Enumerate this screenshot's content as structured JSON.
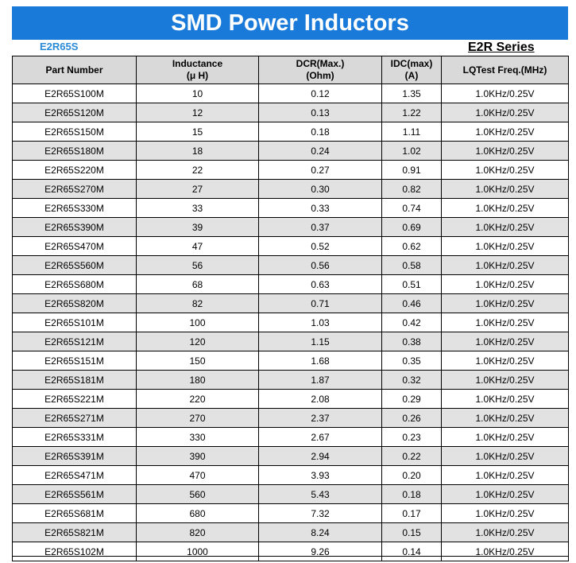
{
  "title": "SMD Power Inductors",
  "model": "E2R65S",
  "series": "E2R Series",
  "colors": {
    "banner": "#1a7ad9",
    "model_text": "#2a8ad6",
    "header_bg": "#d9d9d9",
    "alt_row_bg": "#e2e2e2"
  },
  "columns": [
    {
      "line1": "Part Number",
      "line2": ""
    },
    {
      "line1": "Inductance",
      "line2": "(μ H)"
    },
    {
      "line1": "DCR(Max.)",
      "line2": "(Ohm)"
    },
    {
      "line1": "IDC(max)",
      "line2": "(A)"
    },
    {
      "line1": "LQTest Freq.(MHz)",
      "line2": ""
    }
  ],
  "rows": [
    [
      "E2R65S100M",
      "10",
      "0.12",
      "1.35",
      "1.0KHz/0.25V"
    ],
    [
      "E2R65S120M",
      "12",
      "0.13",
      "1.22",
      "1.0KHz/0.25V"
    ],
    [
      "E2R65S150M",
      "15",
      "0.18",
      "1.11",
      "1.0KHz/0.25V"
    ],
    [
      "E2R65S180M",
      "18",
      "0.24",
      "1.02",
      "1.0KHz/0.25V"
    ],
    [
      "E2R65S220M",
      "22",
      "0.27",
      "0.91",
      "1.0KHz/0.25V"
    ],
    [
      "E2R65S270M",
      "27",
      "0.30",
      "0.82",
      "1.0KHz/0.25V"
    ],
    [
      "E2R65S330M",
      "33",
      "0.33",
      "0.74",
      "1.0KHz/0.25V"
    ],
    [
      "E2R65S390M",
      "39",
      "0.37",
      "0.69",
      "1.0KHz/0.25V"
    ],
    [
      "E2R65S470M",
      "47",
      "0.52",
      "0.62",
      "1.0KHz/0.25V"
    ],
    [
      "E2R65S560M",
      "56",
      "0.56",
      "0.58",
      "1.0KHz/0.25V"
    ],
    [
      "E2R65S680M",
      "68",
      "0.63",
      "0.51",
      "1.0KHz/0.25V"
    ],
    [
      "E2R65S820M",
      "82",
      "0.71",
      "0.46",
      "1.0KHz/0.25V"
    ],
    [
      "E2R65S101M",
      "100",
      "1.03",
      "0.42",
      "1.0KHz/0.25V"
    ],
    [
      "E2R65S121M",
      "120",
      "1.15",
      "0.38",
      "1.0KHz/0.25V"
    ],
    [
      "E2R65S151M",
      "150",
      "1.68",
      "0.35",
      "1.0KHz/0.25V"
    ],
    [
      "E2R65S181M",
      "180",
      "1.87",
      "0.32",
      "1.0KHz/0.25V"
    ],
    [
      "E2R65S221M",
      "220",
      "2.08",
      "0.29",
      "1.0KHz/0.25V"
    ],
    [
      "E2R65S271M",
      "270",
      "2.37",
      "0.26",
      "1.0KHz/0.25V"
    ],
    [
      "E2R65S331M",
      "330",
      "2.67",
      "0.23",
      "1.0KHz/0.25V"
    ],
    [
      "E2R65S391M",
      "390",
      "2.94",
      "0.22",
      "1.0KHz/0.25V"
    ],
    [
      "E2R65S471M",
      "470",
      "3.93",
      "0.20",
      "1.0KHz/0.25V"
    ],
    [
      "E2R65S561M",
      "560",
      "5.43",
      "0.18",
      "1.0KHz/0.25V"
    ],
    [
      "E2R65S681M",
      "680",
      "7.32",
      "0.17",
      "1.0KHz/0.25V"
    ],
    [
      "E2R65S821M",
      "820",
      "8.24",
      "0.15",
      "1.0KHz/0.25V"
    ],
    [
      "E2R65S102M",
      "1000",
      "9.26",
      "0.14",
      "1.0KHz/0.25V"
    ]
  ]
}
